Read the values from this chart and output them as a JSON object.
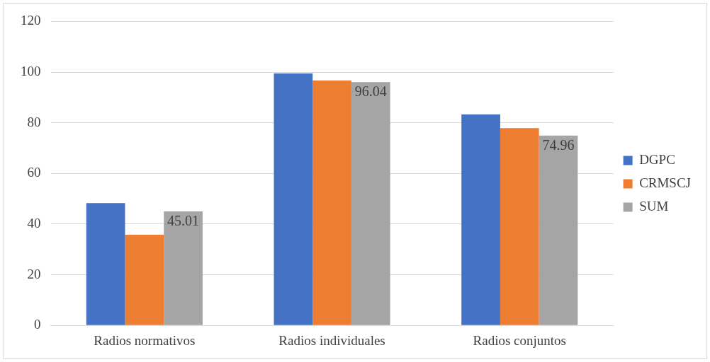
{
  "chart_data": {
    "type": "bar",
    "categories": [
      "Radios normativos",
      "Radios individuales",
      "Radios conjuntos"
    ],
    "series": [
      {
        "name": "DGPC",
        "color": "#4472c4",
        "values": [
          48.3,
          99.5,
          83.3
        ]
      },
      {
        "name": "CRMSCJ",
        "color": "#ed7d31",
        "values": [
          35.8,
          96.7,
          77.9
        ]
      },
      {
        "name": "SUM",
        "color": "#a5a5a5",
        "values": [
          45.01,
          96.04,
          74.96
        ],
        "value_labels": [
          "45.01",
          "96.04",
          "74.96"
        ]
      }
    ],
    "ylim": [
      0,
      120
    ],
    "yticks": [
      0,
      20,
      40,
      60,
      80,
      100,
      120
    ],
    "grid": "y",
    "legend": "right"
  }
}
